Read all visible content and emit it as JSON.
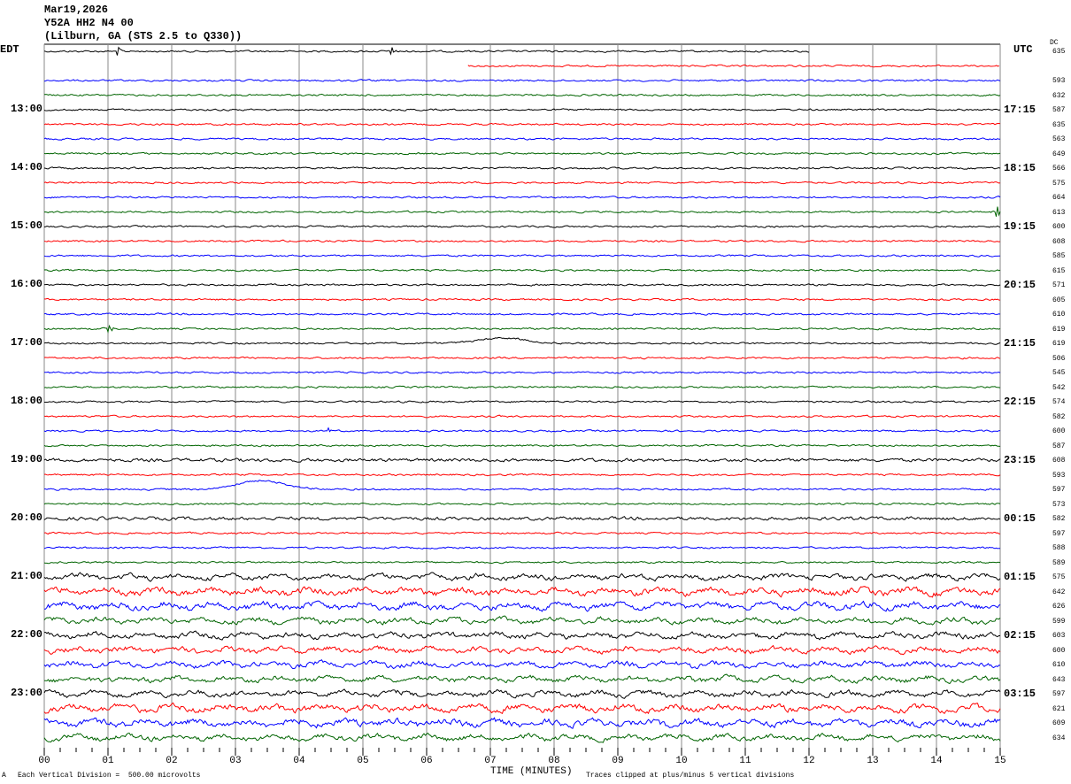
{
  "header": {
    "date": "Mar19,2026",
    "station": "Y52A HH2 N4 00",
    "location": "(Lilburn, GA (STS 2.5 to Q330))"
  },
  "left_tz": "EDT",
  "right_tz": "UTC",
  "dc_label": "DC",
  "colors": [
    "#000000",
    "#ff0000",
    "#0000ff",
    "#006400"
  ],
  "chart_data": {
    "type": "line",
    "title": "Y52A HH2 N4 00 helicorder",
    "xlabel": "TIME (MINUTES)",
    "xlim": [
      0,
      15
    ],
    "x_ticks": [
      "00",
      "01",
      "02",
      "03",
      "04",
      "05",
      "06",
      "07",
      "08",
      "09",
      "10",
      "11",
      "12",
      "13",
      "14",
      "15"
    ],
    "rows": 48,
    "first_row_end_min": 12,
    "second_row_start_min": 6.65,
    "left_labels": [
      {
        "row": 4,
        "text": "13:00"
      },
      {
        "row": 8,
        "text": "14:00"
      },
      {
        "row": 12,
        "text": "15:00"
      },
      {
        "row": 16,
        "text": "16:00"
      },
      {
        "row": 20,
        "text": "17:00"
      },
      {
        "row": 24,
        "text": "18:00"
      },
      {
        "row": 28,
        "text": "19:00"
      },
      {
        "row": 32,
        "text": "20:00"
      },
      {
        "row": 36,
        "text": "21:00"
      },
      {
        "row": 40,
        "text": "22:00"
      },
      {
        "row": 44,
        "text": "23:00"
      }
    ],
    "right_labels": [
      {
        "row": 4,
        "text": "17:15"
      },
      {
        "row": 8,
        "text": "18:15"
      },
      {
        "row": 12,
        "text": "19:15"
      },
      {
        "row": 16,
        "text": "20:15"
      },
      {
        "row": 20,
        "text": "21:15"
      },
      {
        "row": 24,
        "text": "22:15"
      },
      {
        "row": 28,
        "text": "23:15"
      },
      {
        "row": 32,
        "text": "00:15"
      },
      {
        "row": 36,
        "text": "01:15"
      },
      {
        "row": 40,
        "text": "02:15"
      },
      {
        "row": 44,
        "text": "03:15"
      }
    ],
    "dc_values": [
      "635",
      "",
      "593",
      "632",
      "587",
      "635",
      "563",
      "649",
      "566",
      "575",
      "664",
      "613",
      "600",
      "608",
      "585",
      "615",
      "571",
      "605",
      "610",
      "619",
      "619",
      "506",
      "545",
      "542",
      "574",
      "582",
      "600",
      "587",
      "608",
      "593",
      "597",
      "573",
      "582",
      "597",
      "588",
      "589",
      "575",
      "642",
      "626",
      "599",
      "603",
      "600",
      "610",
      "643",
      "597",
      "621",
      "609",
      "634"
    ],
    "events": [
      {
        "row": 0,
        "min": 1.15,
        "amp": 6,
        "kind": "spike"
      },
      {
        "row": 0,
        "min": 5.45,
        "amp": 5,
        "kind": "spike"
      },
      {
        "row": 11,
        "min": 14.95,
        "amp": 7,
        "kind": "spike"
      },
      {
        "row": 19,
        "min": 1.0,
        "amp": 7,
        "kind": "spike"
      },
      {
        "row": 20,
        "min": 7.2,
        "amp": -6,
        "kind": "bump"
      },
      {
        "row": 26,
        "min": 4.45,
        "amp": 9,
        "kind": "spike"
      },
      {
        "row": 30,
        "min": 3.4,
        "amp": -10,
        "kind": "bump"
      }
    ]
  },
  "footer": {
    "scale": "Each Vertical Division =  500.00 microvolts",
    "clip": "Traces clipped at plus/minus 5 vertical divisions",
    "corner": "A"
  }
}
